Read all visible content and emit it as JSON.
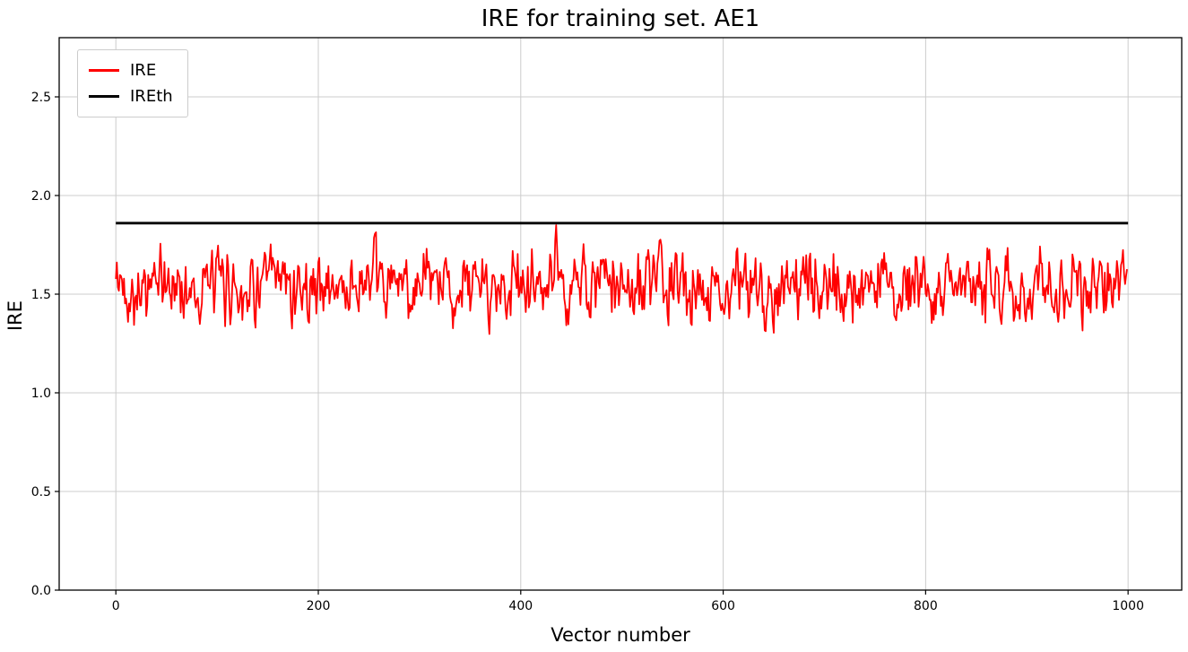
{
  "chart_data": {
    "type": "line",
    "title": "IRE for training set. AE1",
    "xlabel": "Vector number",
    "ylabel": "IRE",
    "xlim": [
      -56,
      1053
    ],
    "ylim": [
      0.0,
      2.8
    ],
    "xticks": [
      0,
      200,
      400,
      600,
      800,
      1000
    ],
    "yticks": [
      0.0,
      0.5,
      1.0,
      1.5,
      2.0,
      2.5
    ],
    "grid": true,
    "grid_color": "#cccccc",
    "axis_color": "#000000",
    "legend": {
      "position": "upper-left",
      "entries": [
        {
          "label": "IRE",
          "color": "#ff0000"
        },
        {
          "label": "IREth",
          "color": "#000000"
        }
      ]
    },
    "series": [
      {
        "name": "IRE",
        "type": "noisy-line",
        "color": "#ff0000",
        "line_width": 1.8,
        "n_points": 1000,
        "x_start": 0,
        "x_step": 1,
        "mean": 1.54,
        "approx_std": 0.09,
        "min": 1.24,
        "max": 1.85,
        "peak": {
          "x": 435,
          "value": 1.85
        },
        "seed": 42
      },
      {
        "name": "IREth",
        "type": "constant-line",
        "color": "#000000",
        "line_width": 2.8,
        "value": 1.86,
        "x_range": [
          0,
          1000
        ]
      }
    ]
  }
}
